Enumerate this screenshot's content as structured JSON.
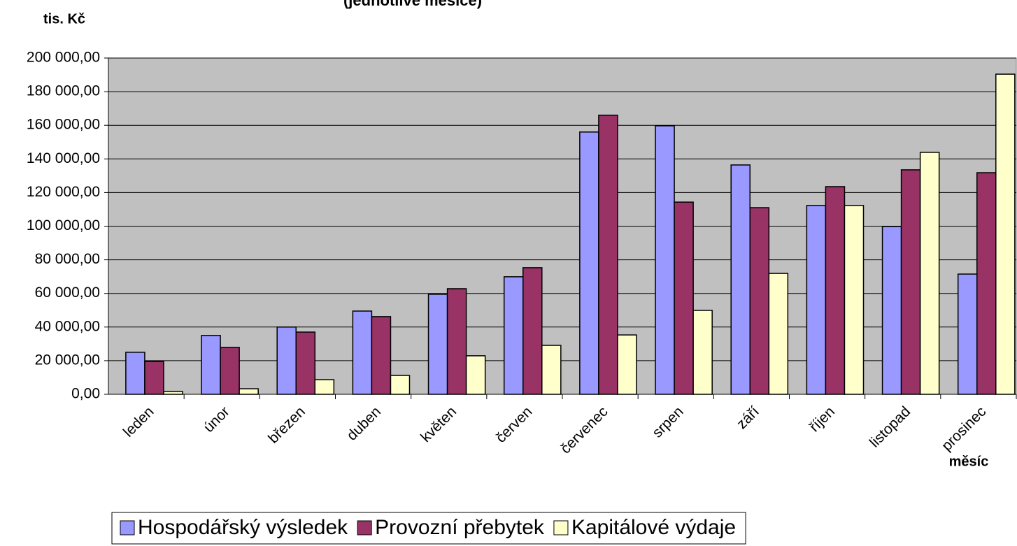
{
  "chart_data": {
    "type": "bar",
    "title": "(jednotlivé měsíce)",
    "y_label": "tis. Kč",
    "x_label": "měsíc",
    "categories": [
      "leden",
      "únor",
      "březen",
      "duben",
      "květen",
      "červen",
      "červenec",
      "srpen",
      "září",
      "říjen",
      "listopad",
      "prosinec"
    ],
    "series": [
      {
        "name": "Hospodářský výsledek",
        "color": "#9999ff",
        "values": [
          25000,
          35000,
          40000,
          49500,
          59500,
          69900,
          156000,
          159700,
          136400,
          112300,
          99800,
          71500
        ]
      },
      {
        "name": "Provozní přebytek",
        "color": "#993366",
        "values": [
          19500,
          27900,
          37000,
          46200,
          62800,
          75300,
          166000,
          114300,
          111000,
          123500,
          133500,
          131800
        ]
      },
      {
        "name": "Kapitálové výdaje",
        "color": "#ffffcc",
        "values": [
          1700,
          3300,
          8700,
          11200,
          22900,
          29100,
          35300,
          49900,
          71900,
          112300,
          143900,
          190400
        ]
      }
    ],
    "ylim": [
      0,
      200000
    ],
    "yticks": [
      {
        "value": 0,
        "label": "0,00"
      },
      {
        "value": 20000,
        "label": "20 000,00"
      },
      {
        "value": 40000,
        "label": "40 000,00"
      },
      {
        "value": 60000,
        "label": "60 000,00"
      },
      {
        "value": 80000,
        "label": "80 000,00"
      },
      {
        "value": 100000,
        "label": "100 000,00"
      },
      {
        "value": 120000,
        "label": "120 000,00"
      },
      {
        "value": 140000,
        "label": "140 000,00"
      },
      {
        "value": 160000,
        "label": "160 000,00"
      },
      {
        "value": 180000,
        "label": "180 000,00"
      },
      {
        "value": 200000,
        "label": "200 000,00"
      }
    ],
    "grid": true,
    "plot_background": "#c0c0c0",
    "legend": "bottom"
  }
}
